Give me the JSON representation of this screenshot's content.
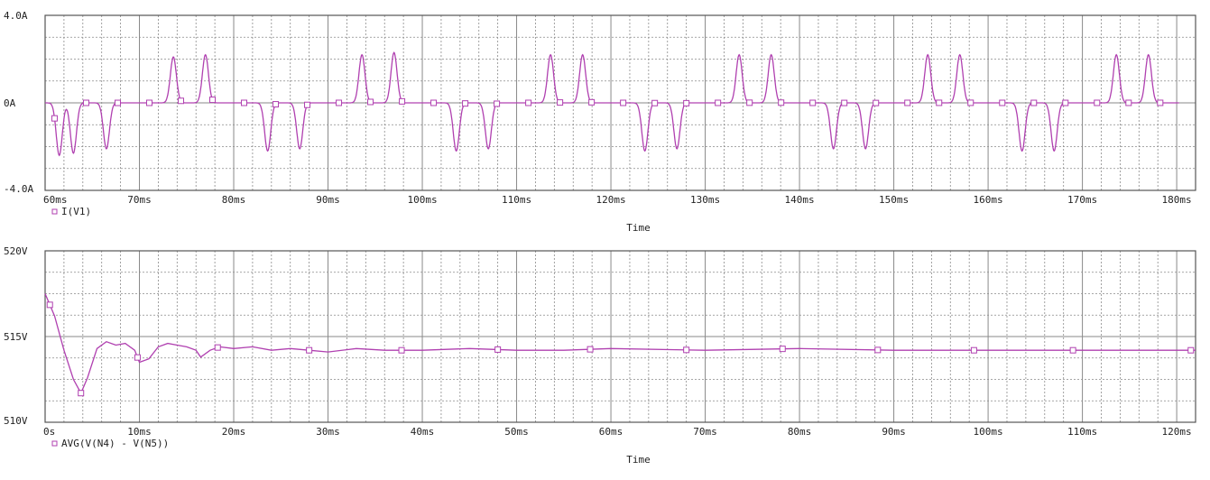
{
  "colors": {
    "trace": "#b040b0",
    "grid": "#8a8a8a",
    "frame": "#555555",
    "background": "#ffffff"
  },
  "chart_data": [
    {
      "type": "line",
      "xlabel": "Time",
      "ylabel": "",
      "xlim": [
        60,
        182
      ],
      "ylim": [
        -4,
        4
      ],
      "x_ticks": [
        "60ms",
        "70ms",
        "80ms",
        "90ms",
        "100ms",
        "110ms",
        "120ms",
        "130ms",
        "140ms",
        "150ms",
        "160ms",
        "170ms",
        "180ms"
      ],
      "y_ticks": [
        "4.0A",
        "0A",
        "-4.0A"
      ],
      "grid": true,
      "legend_position": "bottom-left",
      "series": [
        {
          "name": "I(V1)",
          "marker": "square",
          "pulses": [
            {
              "t": 61.5,
              "amp": -2.4
            },
            {
              "t": 63.0,
              "amp": -2.3
            },
            {
              "t": 66.5,
              "amp": -2.1
            },
            {
              "t": 73.6,
              "amp": 2.1
            },
            {
              "t": 77.0,
              "amp": 2.2
            },
            {
              "t": 83.6,
              "amp": -2.2
            },
            {
              "t": 87.0,
              "amp": -2.1
            },
            {
              "t": 93.6,
              "amp": 2.2
            },
            {
              "t": 97.0,
              "amp": 2.3
            },
            {
              "t": 103.6,
              "amp": -2.2
            },
            {
              "t": 107.0,
              "amp": -2.1
            },
            {
              "t": 113.6,
              "amp": 2.2
            },
            {
              "t": 117.0,
              "amp": 2.2
            },
            {
              "t": 123.6,
              "amp": -2.2
            },
            {
              "t": 127.0,
              "amp": -2.1
            },
            {
              "t": 133.6,
              "amp": 2.2
            },
            {
              "t": 137.0,
              "amp": 2.2
            },
            {
              "t": 143.6,
              "amp": -2.1
            },
            {
              "t": 147.0,
              "amp": -2.1
            },
            {
              "t": 153.6,
              "amp": 2.2
            },
            {
              "t": 157.0,
              "amp": 2.2
            },
            {
              "t": 163.6,
              "amp": -2.2
            },
            {
              "t": 167.0,
              "amp": -2.2
            },
            {
              "t": 173.6,
              "amp": 2.2
            },
            {
              "t": 177.0,
              "amp": 2.2
            }
          ]
        }
      ]
    },
    {
      "type": "line",
      "xlabel": "Time",
      "ylabel": "",
      "xlim": [
        0,
        122
      ],
      "ylim": [
        510,
        520
      ],
      "x_ticks": [
        "0s",
        "10ms",
        "20ms",
        "30ms",
        "40ms",
        "50ms",
        "60ms",
        "70ms",
        "80ms",
        "90ms",
        "100ms",
        "110ms",
        "120ms"
      ],
      "y_ticks": [
        "520V",
        "515V",
        "510V"
      ],
      "grid": true,
      "legend_position": "bottom-left",
      "series": [
        {
          "name": "AVG(V(N4) - V(N5))",
          "marker": "square",
          "x": [
            0,
            1,
            2,
            3,
            3.8,
            4.5,
            5.5,
            6.5,
            7.5,
            8.5,
            9.5,
            10,
            11,
            12,
            13,
            14,
            15,
            16,
            16.5,
            17.5,
            18.5,
            20,
            22,
            24,
            26,
            28,
            30,
            33,
            36,
            40,
            45,
            50,
            55,
            60,
            70,
            80,
            90,
            100,
            110,
            122
          ],
          "values": [
            517.5,
            516.2,
            514.2,
            512.5,
            511.7,
            512.6,
            514.3,
            514.7,
            514.5,
            514.6,
            514.2,
            513.5,
            513.7,
            514.4,
            514.6,
            514.5,
            514.4,
            514.2,
            513.8,
            514.2,
            514.4,
            514.3,
            514.4,
            514.2,
            514.3,
            514.2,
            514.1,
            514.3,
            514.2,
            514.2,
            514.3,
            514.2,
            514.2,
            514.3,
            514.2,
            514.3,
            514.2,
            514.2,
            514.2,
            514.2
          ]
        }
      ]
    }
  ]
}
